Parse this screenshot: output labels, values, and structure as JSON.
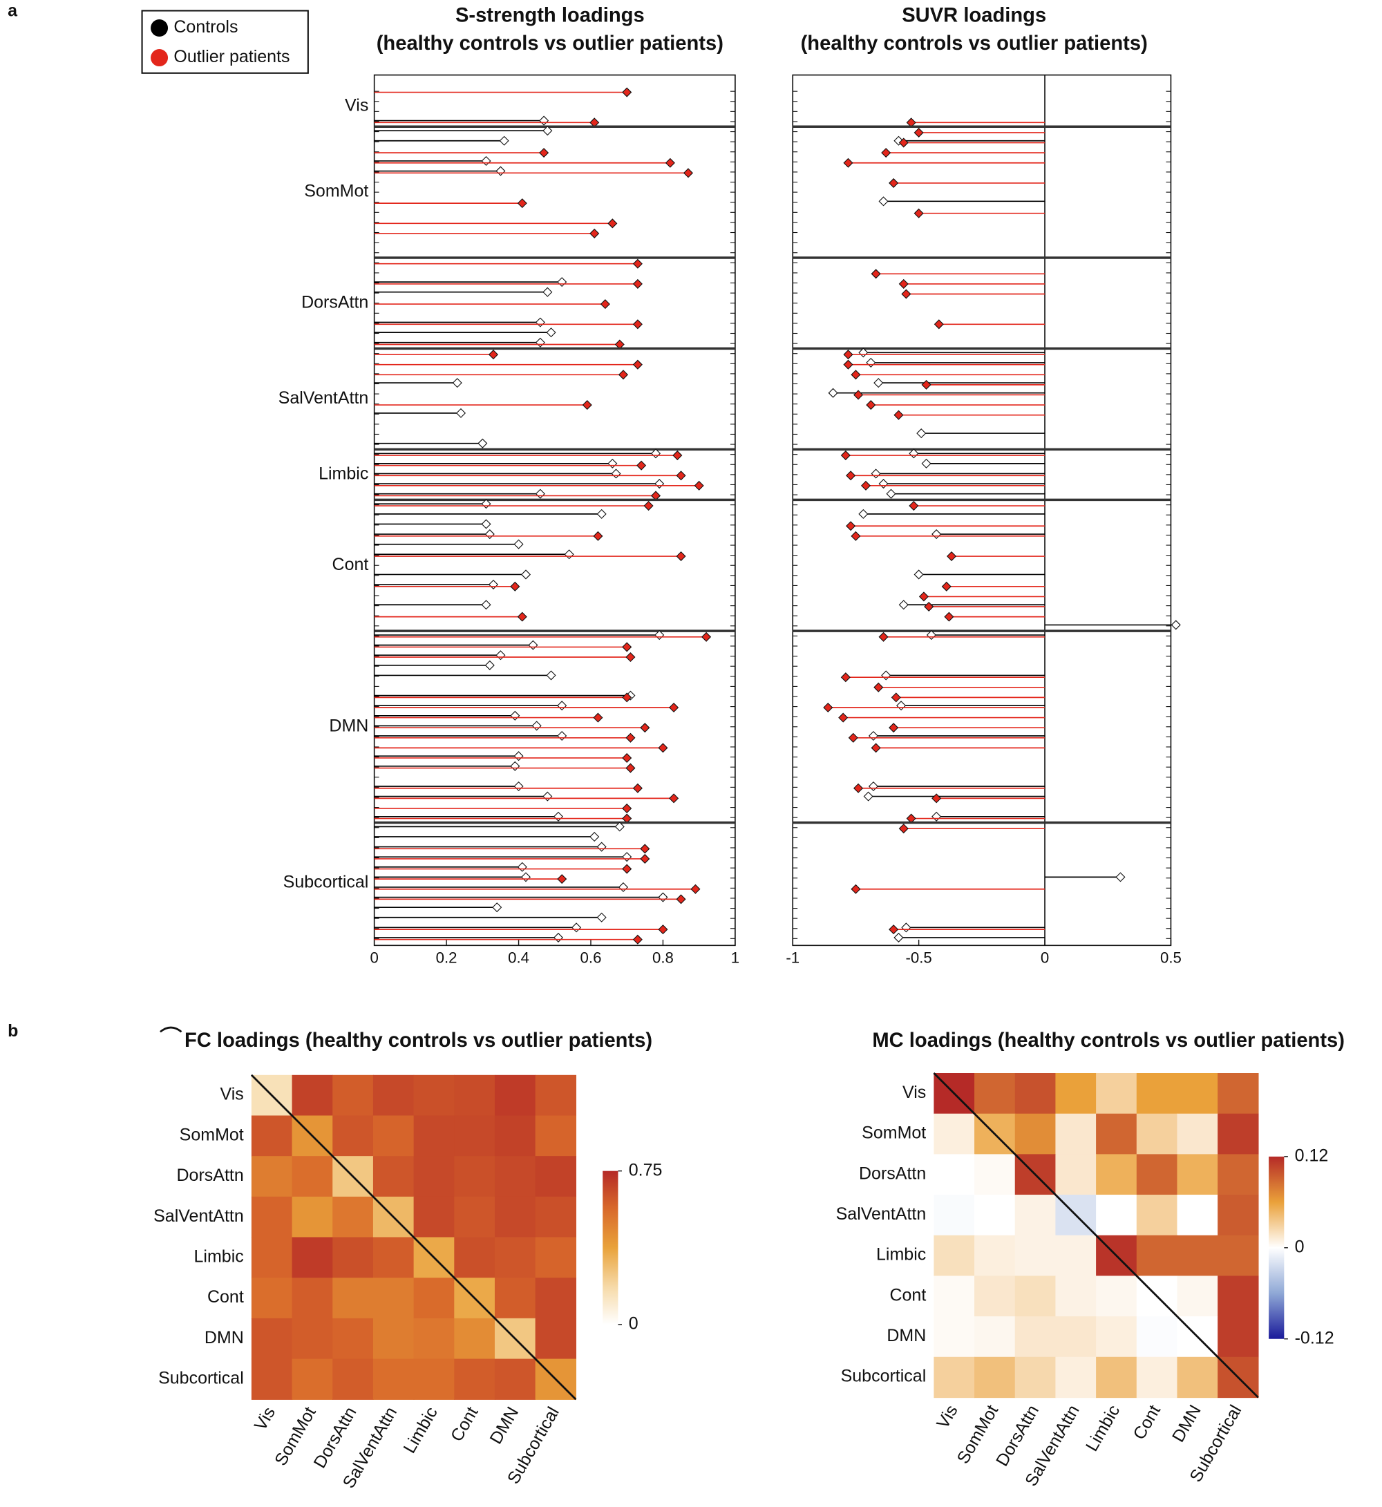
{
  "chart_data": [
    {
      "type": "lollipop",
      "title": "S-strength loadings",
      "subtitle": "(healthy controls vs outlier patients)",
      "panel": "a",
      "series": [
        {
          "name": "Controls",
          "color": "#000000",
          "marker_color": "#ffffff"
        },
        {
          "name": "Outlier patients",
          "color": "#e3261b",
          "marker_color": "#e3261b"
        }
      ],
      "xlim": [
        0,
        1
      ],
      "xticks": [
        0,
        0.2,
        0.4,
        0.6,
        0.8,
        1
      ],
      "groups": [
        {
          "label": "Vis",
          "controls": [
            null,
            null,
            null,
            0.47
          ],
          "patients": [
            0.7,
            null,
            null,
            0.61
          ]
        },
        {
          "label": "SomMot",
          "controls": [
            0.48,
            0.36,
            null,
            0.31,
            0.35,
            null,
            null,
            null,
            null,
            null,
            null,
            null,
            null
          ],
          "patients": [
            null,
            null,
            0.47,
            0.82,
            0.87,
            null,
            null,
            0.41,
            null,
            0.66,
            0.61,
            null,
            null
          ]
        },
        {
          "label": "DorsAttn",
          "controls": [
            null,
            null,
            0.52,
            0.48,
            null,
            null,
            0.46,
            0.49,
            0.46
          ],
          "patients": [
            0.73,
            null,
            0.73,
            null,
            0.64,
            null,
            0.73,
            null,
            0.68
          ]
        },
        {
          "label": "SalVentAttn",
          "controls": [
            null,
            null,
            null,
            0.23,
            null,
            null,
            0.24,
            null,
            null,
            0.3
          ],
          "patients": [
            0.33,
            0.73,
            0.69,
            null,
            null,
            0.59,
            null,
            null,
            null,
            null
          ]
        },
        {
          "label": "Limbic",
          "controls": [
            0.78,
            0.66,
            0.67,
            0.79,
            0.46
          ],
          "patients": [
            0.84,
            0.74,
            0.85,
            0.9,
            0.78
          ]
        },
        {
          "label": "Cont",
          "controls": [
            0.31,
            0.63,
            0.31,
            0.32,
            0.4,
            0.54,
            null,
            0.42,
            0.33,
            null,
            0.31,
            null,
            null
          ],
          "patients": [
            0.76,
            null,
            null,
            0.62,
            null,
            0.85,
            null,
            null,
            0.39,
            null,
            null,
            0.41,
            null
          ]
        },
        {
          "label": "DMN",
          "controls": [
            0.79,
            0.44,
            0.35,
            0.32,
            0.49,
            null,
            0.71,
            0.52,
            0.39,
            0.45,
            0.52,
            null,
            0.4,
            0.39,
            null,
            0.4,
            0.48,
            null,
            0.51
          ],
          "patients": [
            0.92,
            0.7,
            0.71,
            null,
            null,
            null,
            0.7,
            0.83,
            0.62,
            0.75,
            0.71,
            0.8,
            0.7,
            0.71,
            null,
            0.73,
            0.83,
            0.7,
            0.7
          ]
        },
        {
          "label": "Subcortical",
          "controls": [
            0.68,
            0.61,
            0.63,
            0.7,
            0.41,
            0.42,
            0.69,
            0.8,
            0.34,
            0.63,
            0.56,
            0.51
          ],
          "patients": [
            null,
            null,
            0.75,
            0.75,
            0.7,
            0.52,
            0.89,
            0.85,
            null,
            null,
            0.8,
            0.73
          ]
        }
      ]
    },
    {
      "type": "lollipop",
      "title": "SUVR loadings",
      "subtitle": "(healthy controls vs outlier patients)",
      "xlim": [
        -1,
        0.5
      ],
      "xticks": [
        -1,
        -0.5,
        0,
        0.5
      ],
      "groups": [
        {
          "controls": [
            null,
            null,
            null,
            null
          ],
          "patients": [
            null,
            null,
            null,
            -0.53
          ]
        },
        {
          "controls": [
            null,
            -0.58,
            null,
            null,
            null,
            null,
            null,
            -0.64,
            null,
            null,
            null,
            null,
            null
          ],
          "patients": [
            -0.5,
            -0.56,
            -0.63,
            -0.78,
            null,
            -0.6,
            null,
            null,
            -0.5,
            null,
            null,
            null,
            null
          ]
        },
        {
          "controls": [
            null,
            null,
            null,
            null,
            null,
            null,
            null,
            null,
            null
          ],
          "patients": [
            null,
            -0.67,
            -0.56,
            -0.55,
            null,
            null,
            -0.42,
            null,
            null
          ]
        },
        {
          "controls": [
            -0.72,
            -0.69,
            null,
            -0.66,
            -0.84,
            null,
            null,
            null,
            -0.49,
            null
          ],
          "patients": [
            -0.78,
            -0.78,
            -0.75,
            -0.47,
            -0.74,
            -0.69,
            -0.58,
            null,
            null,
            null
          ]
        },
        {
          "controls": [
            -0.52,
            -0.47,
            -0.67,
            -0.64,
            -0.61
          ],
          "patients": [
            -0.79,
            null,
            -0.77,
            -0.71,
            null
          ]
        },
        {
          "controls": [
            null,
            -0.72,
            null,
            -0.43,
            null,
            null,
            null,
            -0.5,
            null,
            null,
            -0.56,
            null,
            0.52
          ],
          "patients": [
            -0.52,
            null,
            -0.77,
            -0.75,
            null,
            -0.37,
            null,
            null,
            -0.39,
            -0.48,
            -0.46,
            -0.38,
            null
          ]
        },
        {
          "controls": [
            -0.45,
            null,
            null,
            null,
            -0.63,
            null,
            null,
            -0.57,
            null,
            null,
            -0.68,
            null,
            null,
            null,
            null,
            -0.68,
            -0.7,
            null,
            -0.43
          ],
          "patients": [
            -0.64,
            null,
            null,
            null,
            -0.79,
            -0.66,
            -0.59,
            -0.86,
            -0.8,
            -0.6,
            -0.76,
            -0.67,
            null,
            null,
            null,
            -0.74,
            -0.43,
            null,
            -0.53
          ]
        },
        {
          "controls": [
            null,
            null,
            null,
            null,
            null,
            0.3,
            null,
            null,
            null,
            null,
            -0.55,
            -0.58
          ],
          "patients": [
            -0.56,
            null,
            null,
            null,
            null,
            null,
            -0.75,
            null,
            null,
            null,
            -0.6,
            null
          ]
        }
      ]
    },
    {
      "type": "heatmap",
      "title": "FC loadings (healthy controls vs outlier patients)",
      "panel": "b",
      "categories": [
        "Vis",
        "SomMot",
        "DorsAttn",
        "SalVentAttn",
        "Limbic",
        "Cont",
        "DMN",
        "Subcortical"
      ],
      "clim": [
        0,
        0.75
      ],
      "cticks": [
        0,
        0.75
      ],
      "colormap": [
        "#ffffff",
        "#f6d9a6",
        "#e9a23b",
        "#d96a2b",
        "#b52a27"
      ],
      "values": [
        [
          0.15,
          0.68,
          0.6,
          0.66,
          0.64,
          0.65,
          0.7,
          0.62
        ],
        [
          0.62,
          0.42,
          0.62,
          0.58,
          0.66,
          0.66,
          0.68,
          0.58
        ],
        [
          0.5,
          0.55,
          0.25,
          0.62,
          0.66,
          0.64,
          0.66,
          0.68
        ],
        [
          0.58,
          0.42,
          0.52,
          0.3,
          0.66,
          0.62,
          0.66,
          0.64
        ],
        [
          0.58,
          0.7,
          0.64,
          0.6,
          0.35,
          0.64,
          0.62,
          0.58
        ],
        [
          0.55,
          0.6,
          0.5,
          0.5,
          0.56,
          0.35,
          0.6,
          0.66
        ],
        [
          0.62,
          0.6,
          0.58,
          0.5,
          0.52,
          0.45,
          0.25,
          0.66
        ],
        [
          0.62,
          0.55,
          0.6,
          0.55,
          0.55,
          0.6,
          0.62,
          0.42
        ]
      ]
    },
    {
      "type": "heatmap",
      "title": "MC loadings (healthy controls vs outlier patients)",
      "categories": [
        "Vis",
        "SomMot",
        "DorsAttn",
        "SalVentAttn",
        "Limbic",
        "Cont",
        "DMN",
        "Subcortical"
      ],
      "clim": [
        -0.12,
        0.12
      ],
      "cticks": [
        -0.12,
        0,
        0.12
      ],
      "colormap": [
        "#1a1a9a",
        "#8fa8d6",
        "#ffffff",
        "#eaa13a",
        "#b52a27"
      ],
      "values": [
        [
          0.12,
          0.09,
          0.1,
          0.06,
          0.03,
          0.06,
          0.06,
          0.09
        ],
        [
          0.01,
          0.05,
          0.07,
          0.015,
          0.09,
          0.03,
          0.015,
          0.11
        ],
        [
          0,
          0.003,
          0.11,
          0.015,
          0.05,
          0.09,
          0.05,
          0.09
        ],
        [
          -0.003,
          0,
          0.008,
          -0.02,
          0,
          0.03,
          0,
          0.095
        ],
        [
          0.02,
          0.01,
          0.008,
          0.008,
          0.115,
          0.09,
          0.09,
          0.09
        ],
        [
          0.003,
          0.015,
          0.02,
          0.008,
          0.005,
          0,
          0.005,
          0.11
        ],
        [
          0.003,
          0.005,
          0.015,
          0.015,
          0.01,
          -0.002,
          0,
          0.11
        ],
        [
          0.03,
          0.04,
          0.025,
          0.01,
          0.04,
          0.01,
          0.04,
          0.1
        ]
      ]
    }
  ]
}
